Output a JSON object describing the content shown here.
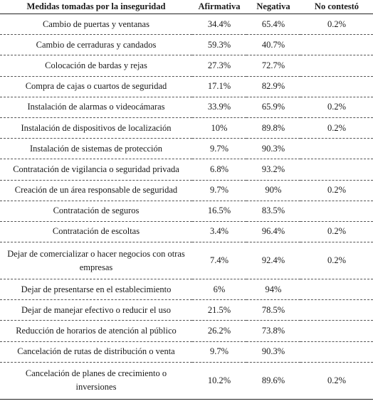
{
  "headers": [
    "Medidas tomadas por la inseguridad",
    "Afirmativa",
    "Negativa",
    "No contestó"
  ],
  "rows": [
    {
      "measure": "Cambio de puertas y ventanas",
      "afirmativa": "34.4%",
      "negativa": "65.4%",
      "no_contesto": "0.2%"
    },
    {
      "measure": "Cambio de cerraduras y candados",
      "afirmativa": "59.3%",
      "negativa": "40.7%",
      "no_contesto": ""
    },
    {
      "measure": "Colocación de bardas y rejas",
      "afirmativa": "27.3%",
      "negativa": "72.7%",
      "no_contesto": ""
    },
    {
      "measure": "Compra de cajas o cuartos de seguridad",
      "afirmativa": "17.1%",
      "negativa": "82.9%",
      "no_contesto": ""
    },
    {
      "measure": "Instalación de alarmas o videocámaras",
      "afirmativa": "33.9%",
      "negativa": "65.9%",
      "no_contesto": "0.2%"
    },
    {
      "measure": "Instalación de dispositivos de localización",
      "afirmativa": "10%",
      "negativa": "89.8%",
      "no_contesto": "0.2%"
    },
    {
      "measure": "Instalación de sistemas de protección",
      "afirmativa": "9.7%",
      "negativa": "90.3%",
      "no_contesto": ""
    },
    {
      "measure": "Contratación de vigilancia o seguridad privada",
      "afirmativa": "6.8%",
      "negativa": "93.2%",
      "no_contesto": ""
    },
    {
      "measure": "Creación de un área responsable de seguridad",
      "afirmativa": "9.7%",
      "negativa": "90%",
      "no_contesto": "0.2%"
    },
    {
      "measure": "Contratación de seguros",
      "afirmativa": "16.5%",
      "negativa": "83.5%",
      "no_contesto": ""
    },
    {
      "measure": "Contratación de escoltas",
      "afirmativa": "3.4%",
      "negativa": "96.4%",
      "no_contesto": "0.2%"
    },
    {
      "measure": "Dejar de comercializar o hacer negocios con otras empresas",
      "afirmativa": "7.4%",
      "negativa": "92.4%",
      "no_contesto": "0.2%"
    },
    {
      "measure": "Dejar de presentarse en el establecimiento",
      "afirmativa": "6%",
      "negativa": "94%",
      "no_contesto": ""
    },
    {
      "measure": "Dejar de manejar efectivo o reducir el uso",
      "afirmativa": "21.5%",
      "negativa": "78.5%",
      "no_contesto": ""
    },
    {
      "measure": "Reducción de horarios de atención al público",
      "afirmativa": "26.2%",
      "negativa": "73.8%",
      "no_contesto": ""
    },
    {
      "measure": "Cancelación de rutas de distribución o venta",
      "afirmativa": "9.7%",
      "negativa": "90.3%",
      "no_contesto": ""
    },
    {
      "measure": "Cancelación de planes de crecimiento o inversiones",
      "afirmativa": "10.2%",
      "negativa": "89.6%",
      "no_contesto": "0.2%"
    }
  ]
}
